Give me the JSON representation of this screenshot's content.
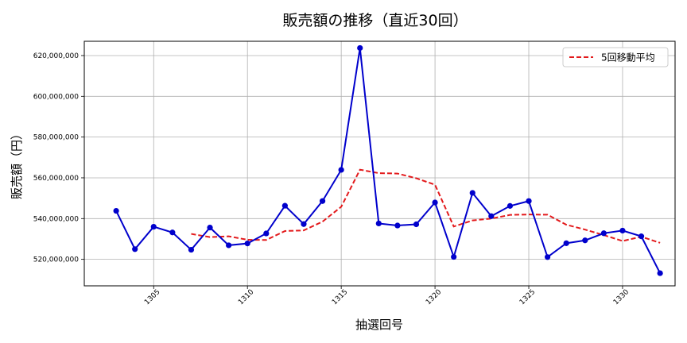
{
  "chart_data": {
    "type": "line",
    "title": "販売額の推移（直近30回）",
    "xlabel": "抽選回号",
    "ylabel": "販売額（円）",
    "xlim": [
      1301.3,
      1332.8
    ],
    "ylim": [
      507000000,
      627000000
    ],
    "xticks": [
      1305,
      1310,
      1315,
      1320,
      1325,
      1330
    ],
    "yticks": [
      520000000,
      540000000,
      560000000,
      580000000,
      600000000,
      620000000
    ],
    "ytick_labels": [
      "520,000,000",
      "540,000,000",
      "560,000,000",
      "580,000,000",
      "600,000,000",
      "620,000,000"
    ],
    "grid": true,
    "legend_position": "top-right",
    "series": [
      {
        "name": "",
        "style": "solid-with-markers",
        "color": "#0000cc",
        "x": [
          1303,
          1304,
          1305,
          1306,
          1307,
          1308,
          1309,
          1310,
          1311,
          1312,
          1313,
          1314,
          1315,
          1316,
          1317,
          1318,
          1319,
          1320,
          1321,
          1322,
          1323,
          1324,
          1325,
          1326,
          1327,
          1328,
          1329,
          1330,
          1331,
          1332
        ],
        "y": [
          543800000,
          525000000,
          536000000,
          533200000,
          524700000,
          535600000,
          526900000,
          527800000,
          532700000,
          546300000,
          537300000,
          548600000,
          563900000,
          623700000,
          537600000,
          536600000,
          537200000,
          547900000,
          521200000,
          552600000,
          541200000,
          546200000,
          548600000,
          521100000,
          527900000,
          529300000,
          532800000,
          534100000,
          531300000,
          513200000
        ]
      },
      {
        "name": "5回移動平均",
        "style": "dashed",
        "color": "#e31a1c",
        "x": [
          1307,
          1308,
          1309,
          1310,
          1311,
          1312,
          1313,
          1314,
          1315,
          1316,
          1317,
          1318,
          1319,
          1320,
          1321,
          1322,
          1323,
          1324,
          1325,
          1326,
          1327,
          1328,
          1329,
          1330,
          1331,
          1332
        ],
        "y": [
          532500000,
          530900000,
          531300000,
          529600000,
          529500000,
          533900000,
          534200000,
          538500000,
          545800000,
          564000000,
          562300000,
          562100000,
          559800000,
          556600000,
          536100000,
          539100000,
          540000000,
          541800000,
          542000000,
          541900000,
          537000000,
          534600000,
          531900000,
          529000000,
          531100000,
          528100000
        ]
      }
    ]
  }
}
